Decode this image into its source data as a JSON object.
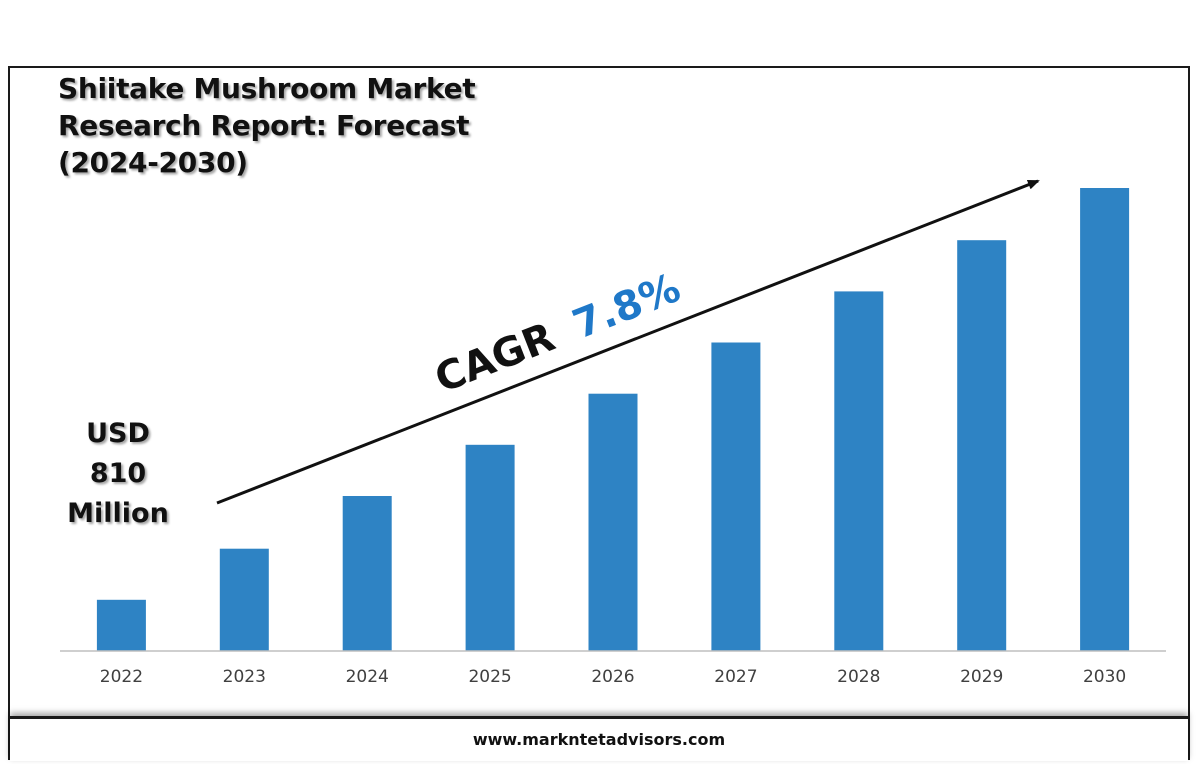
{
  "title_lines": [
    "Shiitake Mushroom Market",
    "Research Report: Forecast",
    "(2024-2030)"
  ],
  "annotations": {
    "start_value_lines": [
      "USD",
      "810",
      "Million"
    ],
    "cagr_label": "CAGR",
    "cagr_value": "7.8%"
  },
  "footer": {
    "url": "www.markntetadvisors.com"
  },
  "colors": {
    "bar": "#2e83c4",
    "cagr_value": "#1f78c8",
    "text": "#111111",
    "axis": "#bfbfbf"
  },
  "chart_data": {
    "type": "bar",
    "categories": [
      "2022",
      "2023",
      "2024",
      "2025",
      "2026",
      "2027",
      "2028",
      "2029",
      "2030"
    ],
    "values": [
      1.0,
      2.0,
      3.03,
      4.03,
      5.03,
      6.03,
      7.03,
      8.03,
      9.05
    ],
    "ylim": [
      0,
      9.5
    ],
    "grid": false,
    "legend": "none"
  }
}
